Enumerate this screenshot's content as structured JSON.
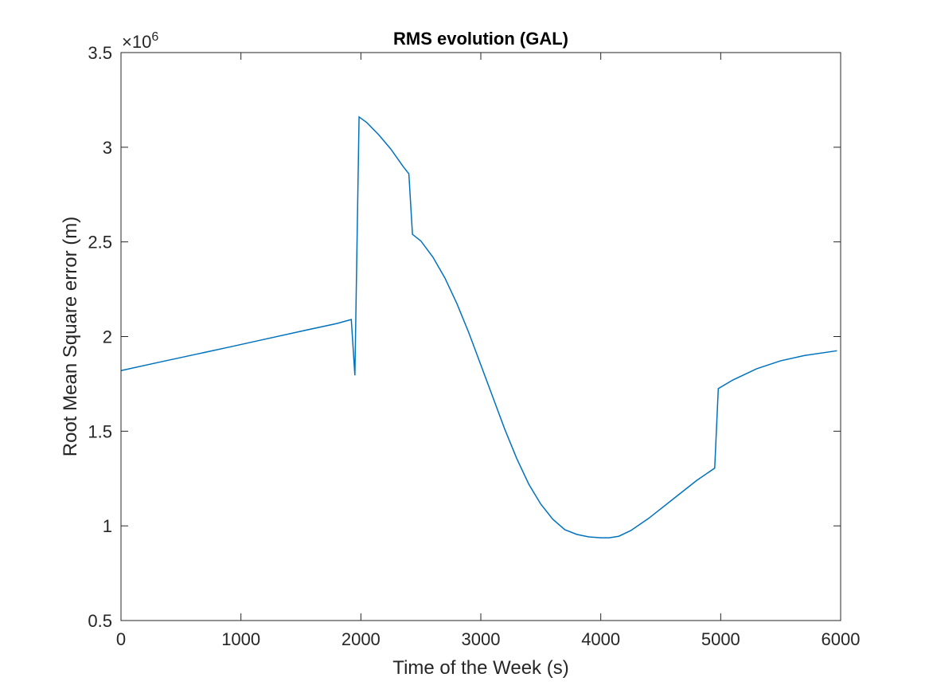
{
  "chart_data": {
    "type": "line",
    "title": "RMS evolution (GAL)",
    "xlabel": "Time of the Week (s)",
    "ylabel": "Root Mean Square error (m)",
    "xlim": [
      0,
      6000
    ],
    "ylim": [
      500000,
      3500000
    ],
    "y_exponent_base": "×10",
    "y_exponent_power": "6",
    "x_ticks": [
      0,
      1000,
      2000,
      3000,
      4000,
      5000,
      6000
    ],
    "x_tick_labels": [
      "0",
      "1000",
      "2000",
      "3000",
      "4000",
      "5000",
      "6000"
    ],
    "y_ticks": [
      500000,
      1000000,
      1500000,
      2000000,
      2500000,
      3000000,
      3500000
    ],
    "y_tick_labels": [
      "0.5",
      "1",
      "1.5",
      "2",
      "2.5",
      "3",
      "3.5"
    ],
    "grid": false,
    "line_color": "#0072BD",
    "series": [
      {
        "x": [
          0,
          300,
          600,
          900,
          1200,
          1500,
          1800,
          1920,
          1950,
          1985,
          2050,
          2150,
          2250,
          2350,
          2400,
          2430,
          2500,
          2600,
          2700,
          2800,
          2900,
          3000,
          3100,
          3200,
          3300,
          3400,
          3500,
          3600,
          3700,
          3800,
          3900,
          4000,
          4070,
          4150,
          4250,
          4400,
          4600,
          4800,
          4950,
          4980,
          5100,
          5300,
          5500,
          5700,
          5970
        ],
        "y": [
          1820000,
          1862000,
          1903000,
          1944000,
          1986000,
          2028000,
          2069000,
          2090000,
          1795000,
          3160000,
          3130000,
          3065000,
          2990000,
          2900000,
          2860000,
          2540000,
          2505000,
          2420000,
          2310000,
          2175000,
          2020000,
          1850000,
          1680000,
          1510000,
          1355000,
          1220000,
          1115000,
          1035000,
          980000,
          955000,
          942000,
          937000,
          937000,
          945000,
          975000,
          1040000,
          1140000,
          1240000,
          1305000,
          1725000,
          1770000,
          1830000,
          1872000,
          1900000,
          1925000
        ]
      }
    ]
  }
}
